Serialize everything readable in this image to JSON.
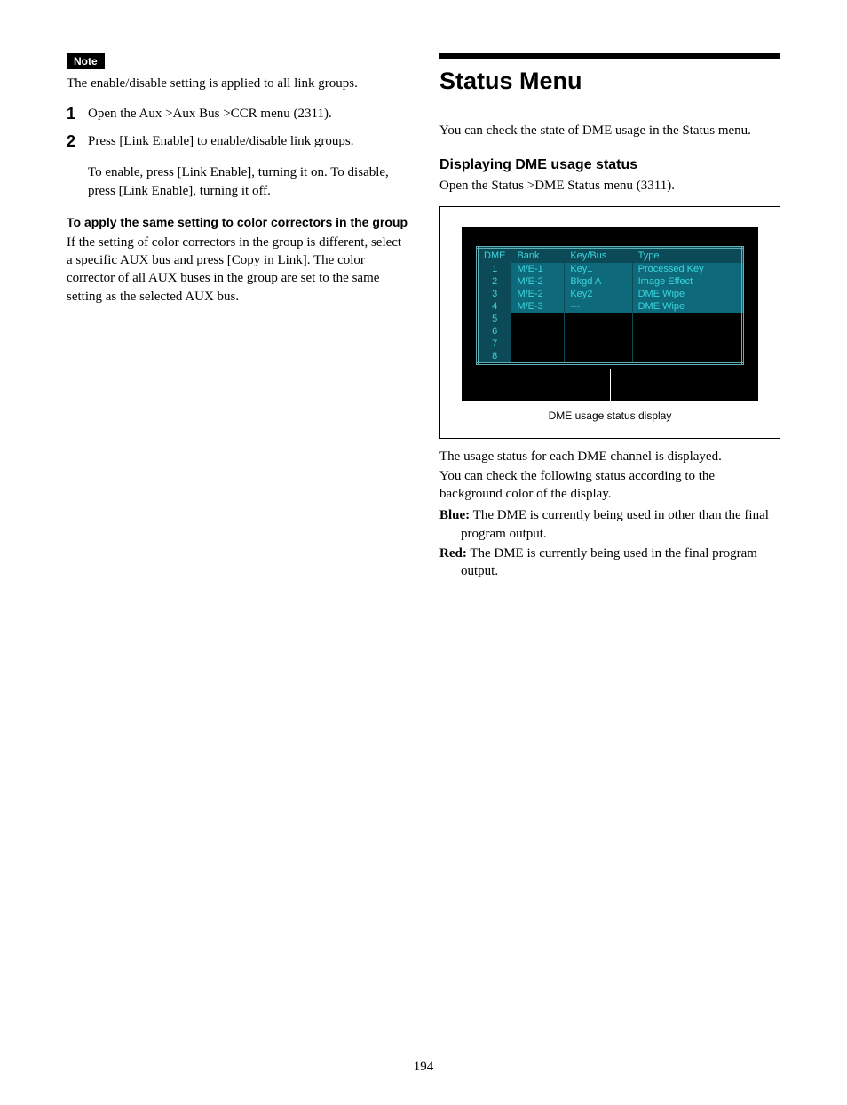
{
  "left": {
    "note_badge": "Note",
    "note_text": "The enable/disable setting is applied to all link groups.",
    "steps": [
      {
        "n": "1",
        "text": "Open the Aux >Aux Bus >CCR menu (2311)."
      },
      {
        "n": "2",
        "text": "Press [Link Enable] to enable/disable link groups."
      }
    ],
    "step2_sub": "To enable, press [Link Enable], turning it on. To disable, press [Link Enable], turning it off.",
    "sub_heading": "To apply the same setting to color correctors in the group",
    "sub_body": "If the setting of color correctors in the group is different, select a specific AUX bus and press [Copy in Link]. The color corrector of all AUX buses in the group are set to the same setting as the selected AUX bus."
  },
  "right": {
    "title": "Status Menu",
    "intro": "You can check the state of DME usage in the Status menu.",
    "section": "Displaying DME usage status",
    "open_line": "Open the Status >DME Status menu (3311).",
    "figure": {
      "headers": [
        "DME",
        "Bank",
        "Key/Bus",
        "Type"
      ],
      "rows": [
        {
          "dme": "1",
          "bank": "M/E-1",
          "keybus": "Key1",
          "type": "Processed Key",
          "filled": true
        },
        {
          "dme": "2",
          "bank": "M/E-2",
          "keybus": "Bkgd A",
          "type": "Image Effect",
          "filled": true
        },
        {
          "dme": "3",
          "bank": "M/E-2",
          "keybus": "Key2",
          "type": "DME Wipe",
          "filled": true
        },
        {
          "dme": "4",
          "bank": "M/E-3",
          "keybus": "---",
          "type": "DME Wipe",
          "filled": true
        },
        {
          "dme": "5",
          "bank": "",
          "keybus": "",
          "type": "",
          "filled": false
        },
        {
          "dme": "6",
          "bank": "",
          "keybus": "",
          "type": "",
          "filled": false
        },
        {
          "dme": "7",
          "bank": "",
          "keybus": "",
          "type": "",
          "filled": false
        },
        {
          "dme": "8",
          "bank": "",
          "keybus": "",
          "type": "",
          "filled": false
        }
      ],
      "caption": "DME usage status display",
      "colors": {
        "screen_bg": "#000000",
        "header_bg": "#0d4a57",
        "cell_filled_bg": "#0e6a7a",
        "text": "#3bd4dd",
        "border": "#5fb0b4"
      }
    },
    "after1": "The usage status for each DME channel is displayed.",
    "after2": "You can check the following status according to the background color of the display.",
    "defs": [
      {
        "term": "Blue:",
        "body": "The DME is currently being used in other than the final program output."
      },
      {
        "term": "Red:",
        "body": "The DME is currently being used in the final program output."
      }
    ]
  },
  "page_number": "194"
}
